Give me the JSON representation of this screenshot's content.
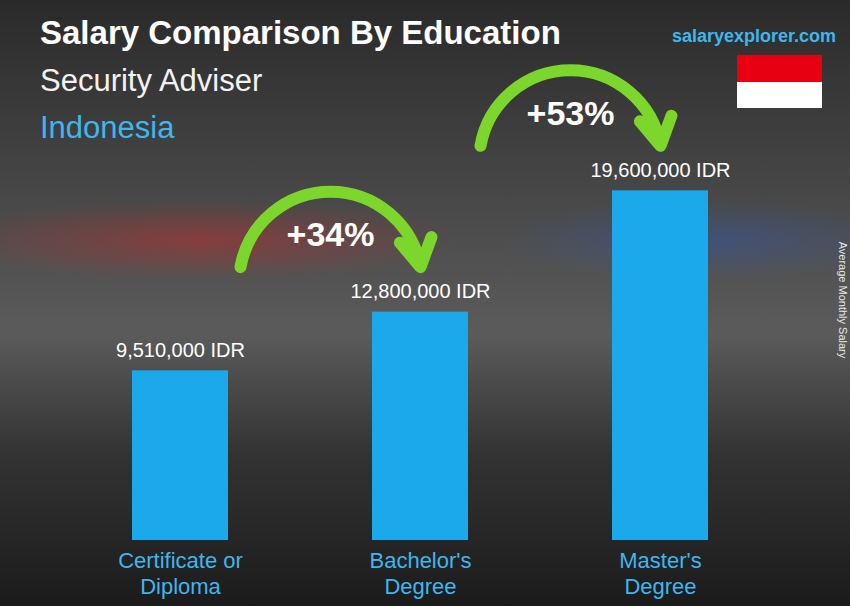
{
  "chart_data": {
    "type": "bar",
    "title": "Salary Comparison By Education",
    "subtitle": "Security Adviser",
    "location": "Indonesia",
    "source": "salaryexplorer.com",
    "y_label": "Average Monthly Salary",
    "categories": [
      "Certificate or Diploma",
      "Bachelor's Degree",
      "Master's Degree"
    ],
    "values": [
      9510000,
      12800000,
      19600000
    ],
    "value_labels": [
      "9,510,000 IDR",
      "12,800,000 IDR",
      "19,600,000 IDR"
    ],
    "annotations": [
      "+34%",
      "+53%"
    ],
    "color": "#1ca9ec",
    "ylim": [
      0,
      25000000
    ],
    "data_labels": true,
    "tick_labels": "x",
    "grid": false
  }
}
